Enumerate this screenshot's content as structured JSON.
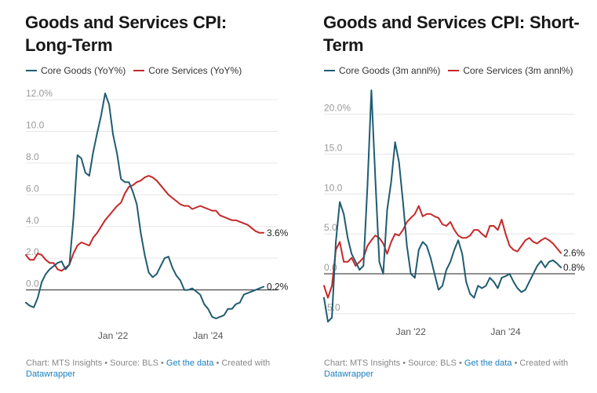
{
  "colors": {
    "goods": "#1f5c70",
    "services": "#c62828",
    "axis_text": "#999999",
    "grid": "#e6e6e6",
    "zero_line": "#222222"
  },
  "charts": [
    {
      "title": "Goods and Services CPI: Long-Term",
      "legend": [
        "Core Goods (YoY%)",
        "Core Services (YoY%)"
      ],
      "footer": {
        "text_before": "Chart: MTS Insights • Source: BLS • ",
        "link1": "Get the data",
        "text_mid": " • Created with ",
        "link2": "Datawrapper"
      }
    },
    {
      "title": "Goods and Services CPI: Short-Term",
      "legend": [
        "Core Goods (3m annl%)",
        "Core Services (3m annl%)"
      ],
      "footer": {
        "text_before": "Chart: MTS Insights • Source: BLS • ",
        "link1": "Get the data",
        "text_mid": " • Created with ",
        "link2": "Datawrapper"
      }
    }
  ],
  "chart_data": [
    {
      "type": "line",
      "title": "Goods and Services CPI: Long-Term",
      "xlabel": "",
      "ylabel": "",
      "x_tick_labels": [
        "Jan '22",
        "Jan '24"
      ],
      "x_tick_index": [
        22,
        46
      ],
      "y_ticks": [
        0,
        2,
        4,
        6,
        8,
        10,
        12
      ],
      "y_tick_labels": [
        "0.0",
        "2.0",
        "4.0",
        "6.0",
        "8.0",
        "10.0",
        "12.0%"
      ],
      "ylim": [
        -2.0,
        12.5
      ],
      "n_points": 61,
      "series": [
        {
          "name": "Core Goods (YoY%)",
          "values": [
            -0.8,
            -1.0,
            -1.1,
            -0.5,
            0.5,
            1.0,
            1.3,
            1.5,
            1.7,
            1.8,
            1.3,
            1.6,
            4.5,
            8.5,
            8.3,
            7.4,
            7.2,
            8.7,
            9.9,
            11.0,
            12.4,
            11.7,
            9.8,
            8.6,
            7.0,
            6.8,
            6.8,
            6.2,
            5.4,
            3.6,
            2.2,
            1.1,
            0.8,
            1.0,
            1.5,
            2.0,
            2.1,
            1.4,
            0.9,
            0.6,
            0.0,
            0.0,
            0.1,
            -0.1,
            -0.3,
            -0.9,
            -1.2,
            -1.7,
            -1.8,
            -1.7,
            -1.6,
            -1.2,
            -1.2,
            -0.9,
            -0.8,
            -0.3,
            -0.2,
            -0.1,
            0.0,
            0.1,
            0.2
          ],
          "end_label": "0.2%"
        },
        {
          "name": "Core Services (YoY%)",
          "values": [
            2.2,
            1.9,
            1.9,
            2.3,
            2.2,
            1.9,
            1.7,
            1.7,
            1.3,
            1.2,
            1.4,
            1.6,
            2.3,
            2.8,
            3.0,
            2.9,
            2.8,
            3.3,
            3.6,
            4.0,
            4.4,
            4.7,
            5.0,
            5.3,
            5.5,
            6.1,
            6.5,
            6.6,
            6.8,
            6.9,
            7.1,
            7.2,
            7.1,
            6.9,
            6.6,
            6.3,
            6.0,
            5.8,
            5.6,
            5.4,
            5.3,
            5.3,
            5.1,
            5.2,
            5.3,
            5.2,
            5.1,
            5.0,
            5.0,
            4.7,
            4.6,
            4.5,
            4.4,
            4.4,
            4.3,
            4.2,
            4.1,
            3.9,
            3.7,
            3.6,
            3.6
          ],
          "end_label": "3.6%"
        }
      ]
    },
    {
      "type": "line",
      "title": "Goods and Services CPI: Short-Term",
      "xlabel": "",
      "ylabel": "",
      "x_tick_labels": [
        "Jan '22",
        "Jan '24"
      ],
      "x_tick_index": [
        22,
        46
      ],
      "y_ticks": [
        -5,
        0,
        5,
        10,
        15,
        20
      ],
      "y_tick_labels": [
        "-5.0",
        "0.0",
        "5.0",
        "10.0",
        "15.0",
        "20.0%"
      ],
      "ylim": [
        -5.5,
        23.5
      ],
      "n_points": 61,
      "series": [
        {
          "name": "Core Goods (3m annl%)",
          "values": [
            -3.0,
            -6.0,
            -5.5,
            4.0,
            9.0,
            7.5,
            4.5,
            2.5,
            1.5,
            0.5,
            1.0,
            11.0,
            23.0,
            12.0,
            1.5,
            0.0,
            8.0,
            11.5,
            16.5,
            14.0,
            9.0,
            3.5,
            0.0,
            -0.5,
            3.0,
            4.0,
            3.5,
            2.0,
            0.0,
            -2.0,
            -1.5,
            0.5,
            1.5,
            3.0,
            4.2,
            2.5,
            -1.0,
            -2.5,
            -3.0,
            -1.5,
            -1.8,
            -1.5,
            -0.5,
            -1.0,
            -1.8,
            -0.5,
            -0.3,
            0.0,
            -1.0,
            -1.8,
            -2.3,
            -2.0,
            -1.0,
            0.0,
            1.0,
            1.6,
            0.8,
            1.5,
            1.7,
            1.3,
            0.8
          ],
          "end_label": "0.8%"
        },
        {
          "name": "Core Services (3m annl%)",
          "values": [
            -1.5,
            -3.0,
            -1.5,
            3.0,
            4.0,
            1.5,
            1.5,
            2.0,
            1.0,
            1.5,
            2.0,
            3.5,
            4.2,
            4.8,
            4.5,
            3.8,
            2.5,
            4.0,
            5.0,
            4.8,
            5.5,
            6.5,
            7.0,
            7.5,
            8.5,
            7.2,
            7.5,
            7.5,
            7.2,
            7.0,
            6.2,
            6.0,
            6.5,
            5.5,
            4.8,
            4.5,
            4.5,
            4.8,
            5.5,
            5.5,
            5.0,
            4.6,
            6.0,
            6.0,
            5.5,
            6.8,
            5.0,
            3.5,
            3.0,
            2.8,
            3.5,
            4.2,
            4.5,
            4.0,
            3.8,
            4.2,
            4.5,
            4.2,
            3.8,
            3.2,
            2.6
          ],
          "end_label": "2.6%"
        }
      ]
    }
  ]
}
